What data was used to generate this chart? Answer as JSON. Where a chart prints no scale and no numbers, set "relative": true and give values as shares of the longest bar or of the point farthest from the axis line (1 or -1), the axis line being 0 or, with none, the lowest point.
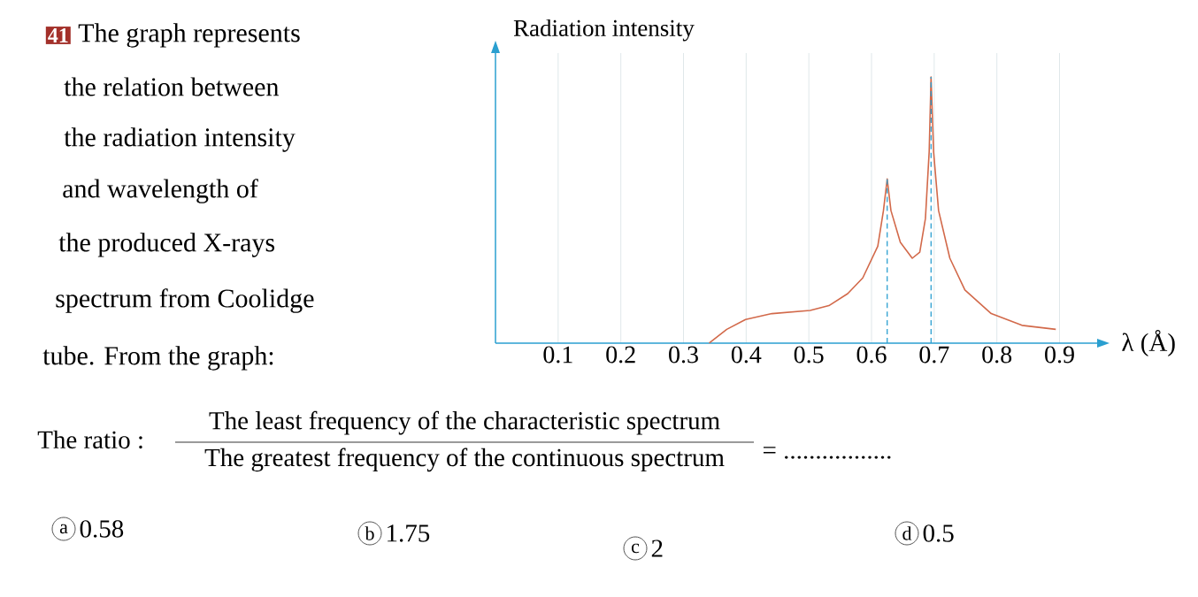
{
  "chart_data": {
    "type": "line",
    "relative": true,
    "ylabel": "Radiation intensity",
    "xlabel": "λ (Å)",
    "x": [
      0.341,
      0.369,
      0.399,
      0.441,
      0.502,
      0.532,
      0.562,
      0.586,
      0.61,
      0.619,
      0.625,
      0.631,
      0.646,
      0.665,
      0.677,
      0.686,
      0.692,
      0.695,
      0.699,
      0.707,
      0.725,
      0.749,
      0.791,
      0.84,
      0.894
    ],
    "series": [
      {
        "color": "#d2694a",
        "values": [
          0,
          0.052,
          0.089,
          0.111,
          0.123,
          0.141,
          0.186,
          0.245,
          0.364,
          0.498,
          0.617,
          0.498,
          0.379,
          0.319,
          0.342,
          0.468,
          0.72,
          1,
          0.72,
          0.498,
          0.319,
          0.2,
          0.111,
          0.067,
          0.052
        ]
      }
    ],
    "xlim": [
      0,
      0.96
    ],
    "xticks": [
      0.1,
      0.2,
      0.3,
      0.4,
      0.5,
      0.6,
      0.7,
      0.8,
      0.9
    ],
    "grid": "x",
    "ref_lines": [
      {
        "axis": "x",
        "value": 0.625,
        "color": "#2a9fd0",
        "line_style": "dashed"
      },
      {
        "axis": "x",
        "value": 0.695,
        "color": "#2a9fd0",
        "line_style": "dashed"
      }
    ],
    "annotations": [
      "41",
      "The graph represents",
      "the relation between",
      "the radiation intensity",
      "and wavelength of",
      "the produced X-rays",
      "spectrum from Coolidge",
      "tube. From the graph:",
      "The ratio :",
      "The least frequency of the characteristic spectrum",
      "The greatest frequency of the continuous spectrum",
      "= .................",
      "a",
      "0.58",
      "b",
      "1.75",
      "c",
      "2",
      "d",
      "0.5"
    ]
  }
}
